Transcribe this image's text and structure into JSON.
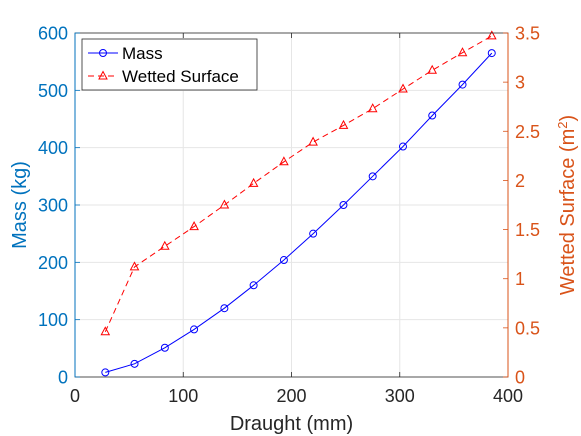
{
  "chart_data": {
    "type": "line",
    "title": "",
    "xlabel": "Draught (mm)",
    "ylabel_left": "Mass (kg)",
    "ylabel_right_main": "Wetted Surface (m",
    "ylabel_right_sup": "2",
    "ylabel_right_close": ")",
    "xlim": [
      0,
      400
    ],
    "ylim_left": [
      0,
      600
    ],
    "ylim_right": [
      0,
      3.5
    ],
    "x_ticks": [
      0,
      100,
      200,
      300,
      400
    ],
    "y_left_ticks": [
      0,
      100,
      200,
      300,
      400,
      500,
      600
    ],
    "y_right_ticks": [
      0,
      0.5,
      1,
      1.5,
      2,
      2.5,
      3,
      3.5
    ],
    "x_tick_labels": [
      "0",
      "100",
      "200",
      "300",
      "400"
    ],
    "y_left_tick_labels": [
      "0",
      "100",
      "200",
      "300",
      "400",
      "500",
      "600"
    ],
    "y_right_tick_labels": [
      "0",
      "0.5",
      "1",
      "1.5",
      "2",
      "2.5",
      "3",
      "3.5"
    ],
    "grid": true,
    "legend_position": "top-left",
    "left_axis_color": "#0072BD",
    "right_axis_color": "#D95319",
    "series": [
      {
        "name": "Mass",
        "axis": "left",
        "color": "#0000FF",
        "marker": "circle",
        "line_style": "solid",
        "x": [
          28,
          55,
          83,
          110,
          138,
          165,
          193,
          220,
          248,
          275,
          303,
          330,
          358,
          385
        ],
        "values": [
          8,
          23,
          51,
          83,
          120,
          160,
          204,
          250,
          300,
          350,
          402,
          456,
          510,
          565
        ]
      },
      {
        "name": "Wetted Surface",
        "axis": "right",
        "color": "#FF0000",
        "marker": "triangle",
        "line_style": "dashed",
        "x": [
          28,
          55,
          83,
          110,
          138,
          165,
          193,
          220,
          248,
          275,
          303,
          330,
          358,
          385
        ],
        "values": [
          0.46,
          1.12,
          1.33,
          1.53,
          1.75,
          1.97,
          2.19,
          2.39,
          2.56,
          2.73,
          2.93,
          3.12,
          3.3,
          3.47
        ]
      }
    ]
  }
}
